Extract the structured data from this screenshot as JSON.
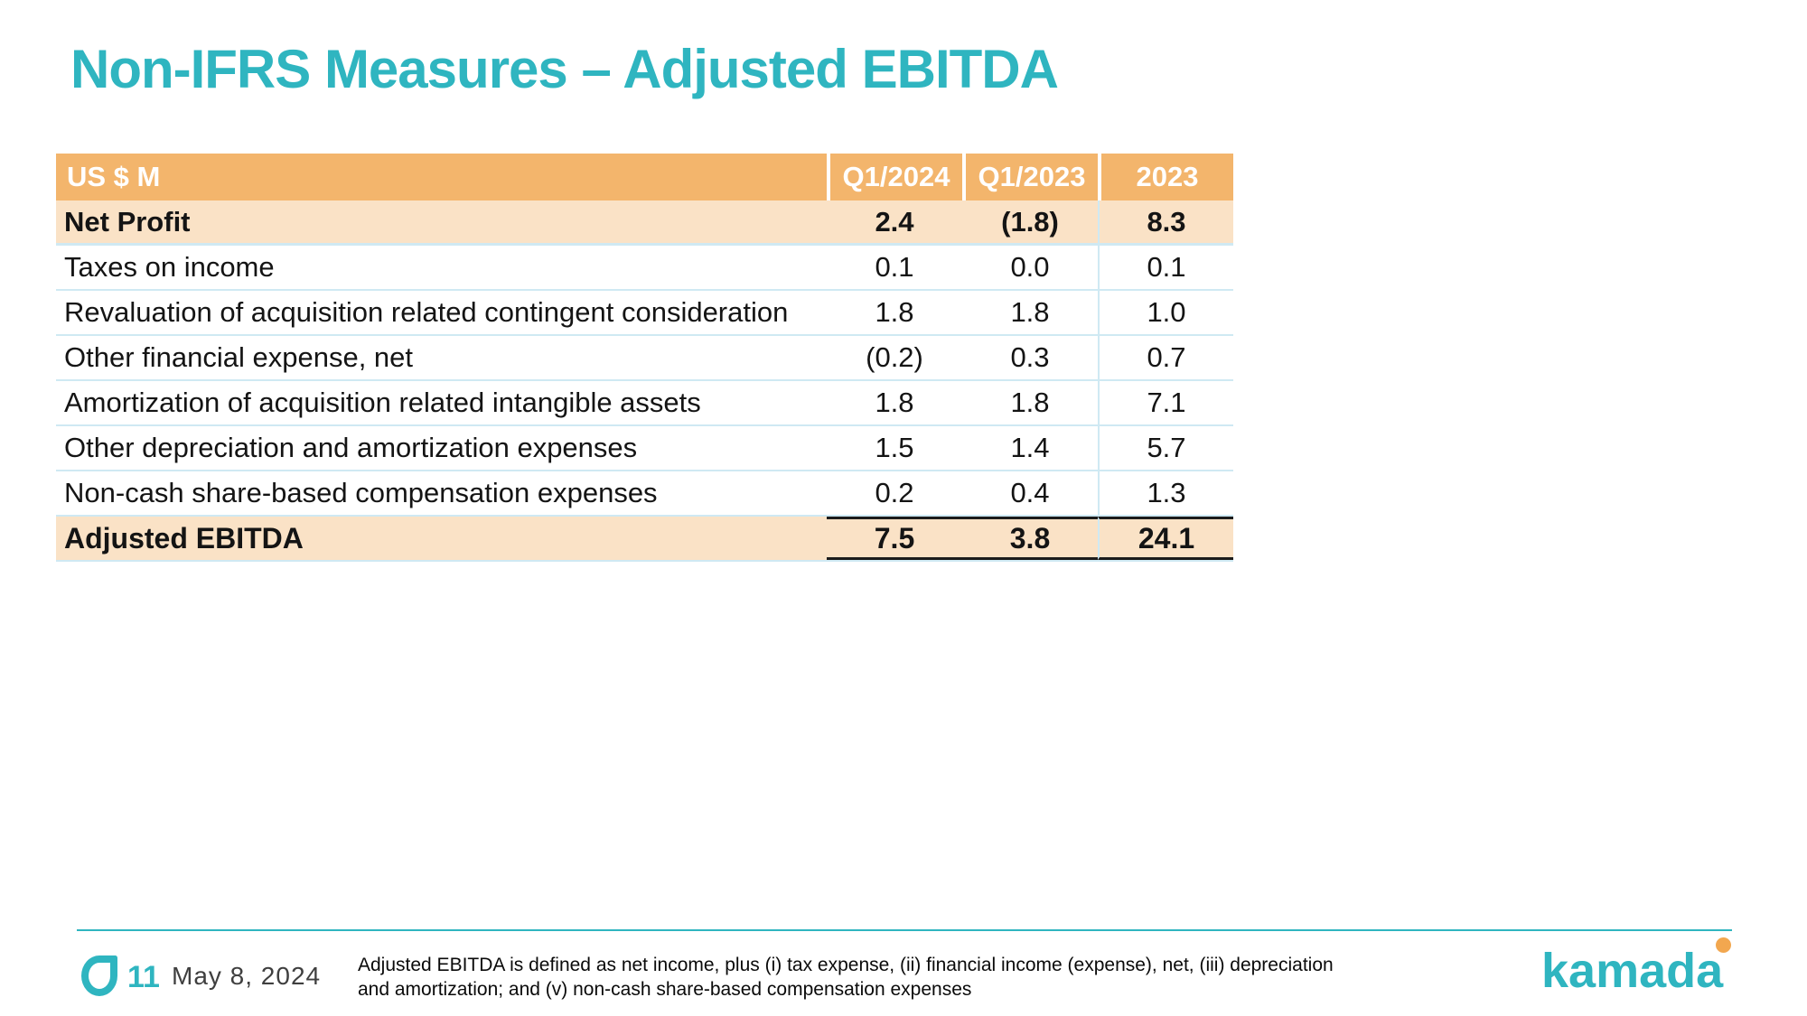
{
  "title": "Non-IFRS Measures – Adjusted EBITDA",
  "table": {
    "columns": [
      "US $ M",
      "Q1/2024",
      "Q1/2023",
      "2023"
    ],
    "rows": [
      {
        "label": "Net Profit",
        "values": [
          "2.4",
          "(1.8)",
          "8.3"
        ]
      },
      {
        "label": "Taxes on income",
        "values": [
          "0.1",
          "0.0",
          "0.1"
        ]
      },
      {
        "label": "Revaluation of acquisition related contingent consideration",
        "values": [
          "1.8",
          "1.8",
          "1.0"
        ]
      },
      {
        "label": "Other financial expense, net",
        "values": [
          "(0.2)",
          "0.3",
          "0.7"
        ]
      },
      {
        "label": "Amortization of acquisition related intangible assets",
        "values": [
          "1.8",
          "1.8",
          "7.1"
        ]
      },
      {
        "label": "Other depreciation and amortization expenses",
        "values": [
          "1.5",
          "1.4",
          "5.7"
        ]
      },
      {
        "label": "Non-cash share-based compensation expenses",
        "values": [
          "0.2",
          "0.4",
          "1.3"
        ]
      },
      {
        "label": "Adjusted EBITDA",
        "values": [
          "7.5",
          "3.8",
          "24.1"
        ]
      }
    ]
  },
  "footer": {
    "page_number": "11",
    "date": "May 8, 2024",
    "footnote_line1": "Adjusted EBITDA is defined as net income, plus (i) tax expense, (ii) financial income (expense), net, (iii) depreciation",
    "footnote_line2": "and amortization; and (v) non-cash share-based compensation expenses",
    "logo_text": "kamada"
  },
  "colors": {
    "accent_teal": "#2FB5C0",
    "header_orange": "#F3B56C",
    "highlight_peach": "#FAE2C6",
    "divider_blue": "#CFE9F3",
    "logo_dot_orange": "#F2A74F"
  }
}
